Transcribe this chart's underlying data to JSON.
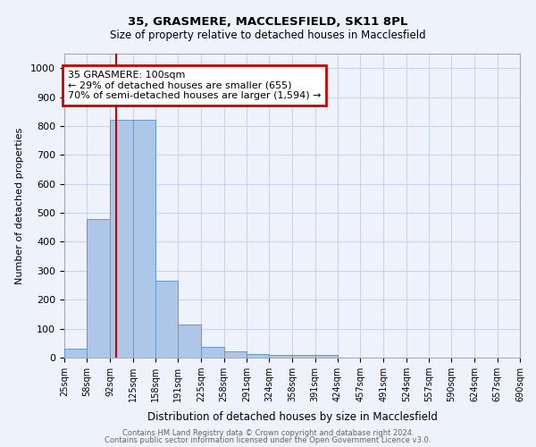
{
  "title1": "35, GRASMERE, MACCLESFIELD, SK11 8PL",
  "title2": "Size of property relative to detached houses in Macclesfield",
  "xlabel": "Distribution of detached houses by size in Macclesfield",
  "ylabel": "Number of detached properties",
  "footer1": "Contains HM Land Registry data © Crown copyright and database right 2024.",
  "footer2": "Contains public sector information licensed under the Open Government Licence v3.0.",
  "annotation_line1": "35 GRASMERE: 100sqm",
  "annotation_line2": "← 29% of detached houses are smaller (655)",
  "annotation_line3": "70% of semi-detached houses are larger (1,594) →",
  "bar_edges": [
    25,
    58,
    92,
    125,
    158,
    191,
    225,
    258,
    291,
    324,
    358,
    391,
    424,
    457,
    491,
    524,
    557,
    590,
    624,
    657,
    690
  ],
  "bar_values": [
    30,
    480,
    820,
    820,
    265,
    113,
    38,
    22,
    12,
    8,
    8,
    8,
    0,
    0,
    0,
    0,
    0,
    0,
    0,
    0
  ],
  "bar_color": "#aec6e8",
  "bar_edge_color": "#5b9bd5",
  "vline_x": 100,
  "vline_color": "#cc0000",
  "ylim": [
    0,
    1050
  ],
  "yticks": [
    0,
    100,
    200,
    300,
    400,
    500,
    600,
    700,
    800,
    900,
    1000
  ],
  "bg_color": "#eef2fb",
  "plot_bg_color": "#eef2fb",
  "annotation_box_color": "#cc0000",
  "grid_color": "#c8d4ea"
}
